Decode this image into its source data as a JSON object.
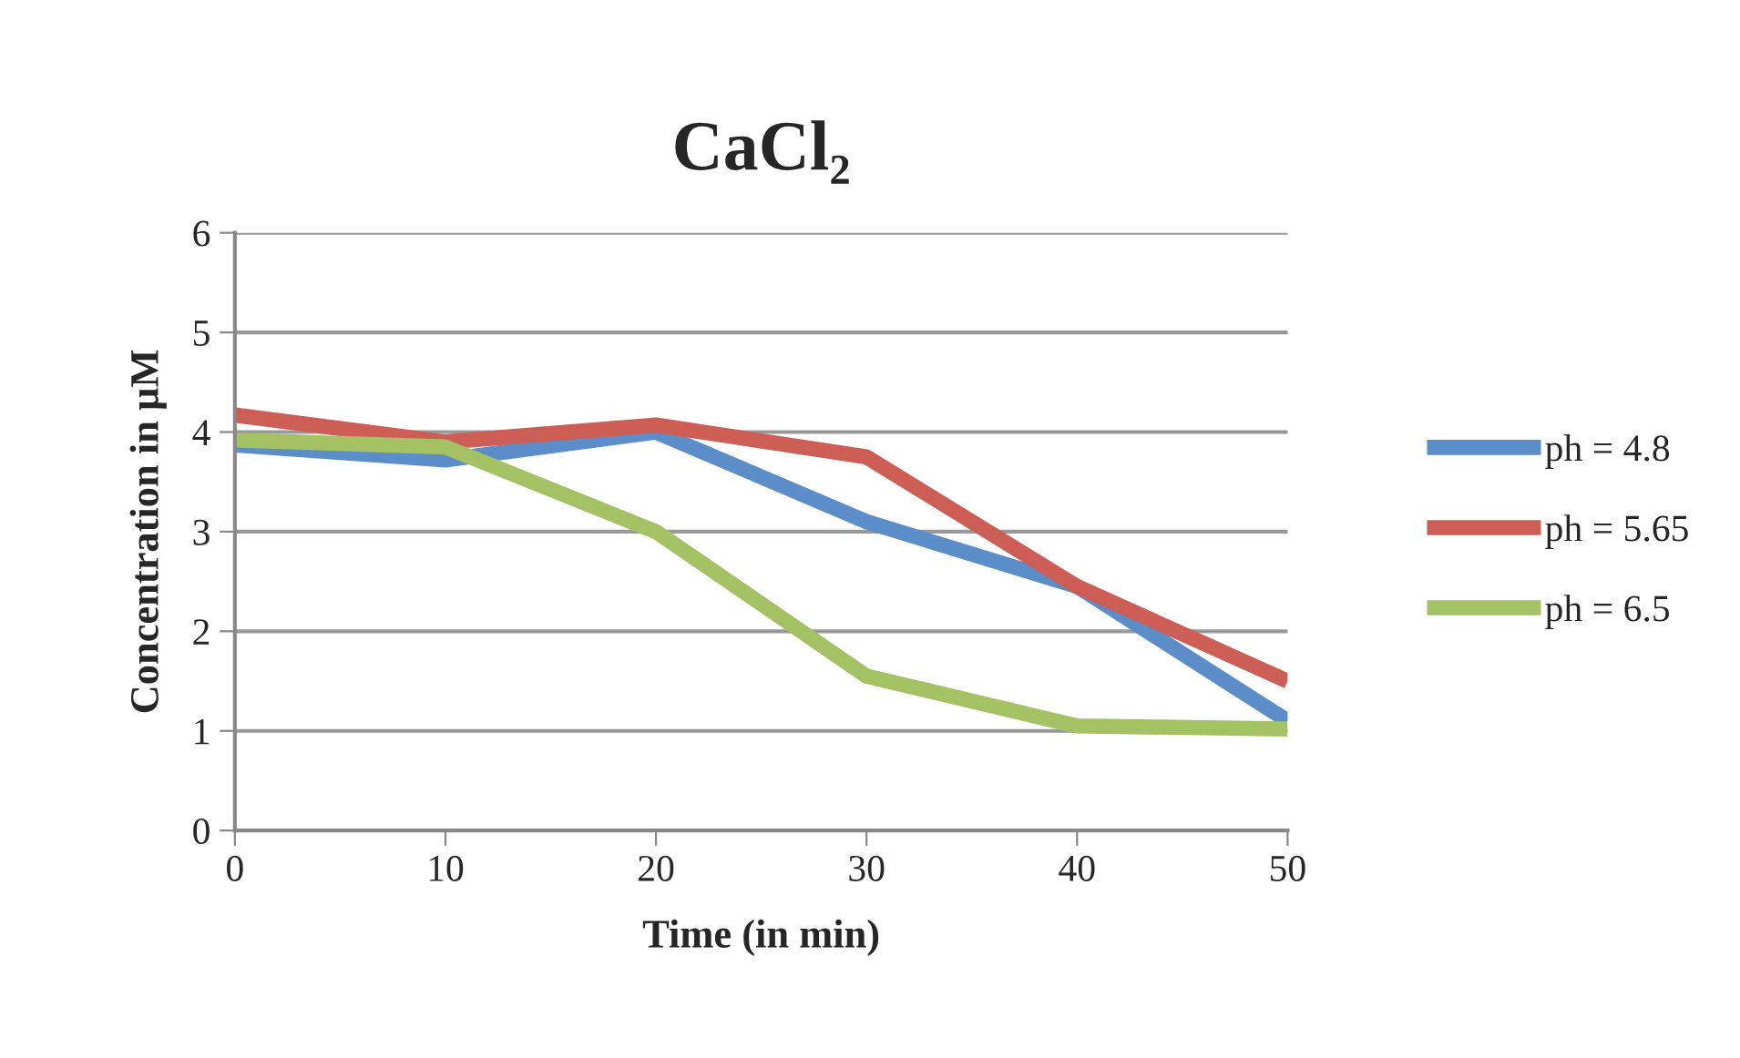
{
  "chart_data": {
    "type": "line",
    "title": "CaCl₂",
    "xlabel": "Time (in min)",
    "ylabel": "Concentration in µM",
    "x": [
      0,
      10,
      20,
      30,
      40,
      50
    ],
    "series": [
      {
        "name": "ph = 4.8",
        "color": "#5b8ec9",
        "values": [
          3.87,
          3.72,
          4.0,
          3.1,
          2.45,
          1.1
        ]
      },
      {
        "name": "ph = 5.65",
        "color": "#cc5e56",
        "values": [
          4.17,
          3.9,
          4.07,
          3.75,
          2.45,
          1.5
        ]
      },
      {
        "name": "ph = 6.5",
        "color": "#a4c263",
        "values": [
          3.92,
          3.85,
          3.0,
          1.55,
          1.05,
          1.02
        ]
      }
    ],
    "xlim": [
      0,
      50
    ],
    "xticks": [
      0,
      10,
      20,
      30,
      40,
      50
    ],
    "ylim": [
      0,
      6
    ],
    "yticks": [
      0,
      1,
      2,
      3,
      4,
      5,
      6
    ],
    "grid": "y",
    "legend": "right",
    "marker": "none",
    "line_style": "solid"
  }
}
